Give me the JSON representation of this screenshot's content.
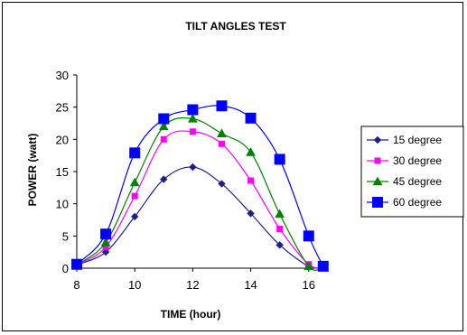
{
  "chart_data": {
    "type": "line",
    "title": "TILT ANGLES TEST",
    "xlabel": "TIME (hour)",
    "ylabel": "POWER (watt)",
    "xlim": [
      8,
      16.6
    ],
    "ylim": [
      0,
      30
    ],
    "xticks": [
      8,
      10,
      12,
      14,
      16
    ],
    "yticks": [
      0,
      5,
      10,
      15,
      20,
      25,
      30
    ],
    "grid": false,
    "legend_position": "right",
    "series": [
      {
        "name": "15 degree",
        "color": "#1f1f8c",
        "marker": "diamond",
        "x": [
          8,
          9,
          10,
          11,
          12,
          13,
          14,
          15,
          16,
          16.5
        ],
        "y": [
          0.5,
          2.5,
          8.0,
          13.8,
          15.7,
          13.1,
          8.5,
          3.6,
          0.3,
          0.2
        ]
      },
      {
        "name": "30 degree",
        "color": "#ff00ff",
        "marker": "square",
        "x": [
          8,
          9,
          10,
          11,
          12,
          13,
          14,
          15,
          16,
          16.5
        ],
        "y": [
          0.5,
          3.3,
          11.2,
          20.0,
          21.2,
          19.3,
          13.6,
          6.1,
          0.6,
          0.2
        ]
      },
      {
        "name": "45 degree",
        "color": "#008000",
        "marker": "triangle",
        "x": [
          8,
          9,
          10,
          11,
          12,
          13,
          14,
          15,
          16,
          16.5
        ],
        "y": [
          0.5,
          4.0,
          13.3,
          22.0,
          23.2,
          20.9,
          18.0,
          8.4,
          0.3,
          0.2
        ]
      },
      {
        "name": "60 degree",
        "color": "#0000ff",
        "marker": "big-square",
        "x": [
          8,
          9,
          10,
          11,
          12,
          13,
          14,
          15,
          16,
          16.5
        ],
        "y": [
          0.6,
          5.3,
          17.9,
          23.2,
          24.6,
          25.2,
          23.3,
          16.9,
          5.0,
          0.3
        ]
      }
    ]
  }
}
